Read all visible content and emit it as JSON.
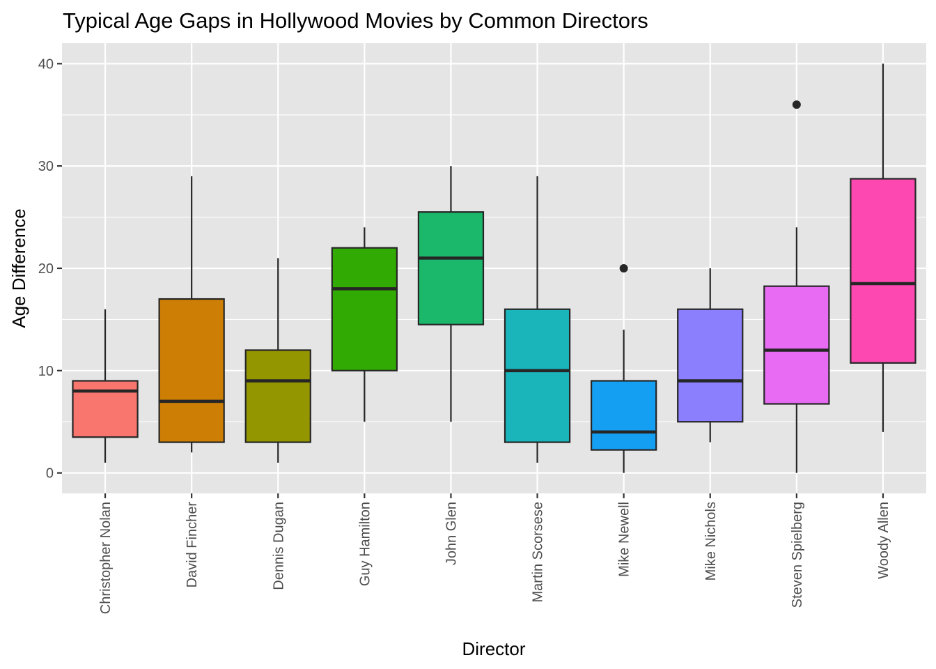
{
  "chart_data": {
    "type": "boxplot",
    "title": "Typical Age Gaps in Hollywood Movies by Common Directors",
    "xlabel": "Director",
    "ylabel": "Age Difference",
    "ylim": [
      -2,
      42
    ],
    "yticks": [
      0,
      10,
      20,
      30,
      40
    ],
    "grid": true,
    "legend": "none",
    "colors": {
      "panel": "#e5e5e5",
      "grid": "#ffffff",
      "box_line": "#262626",
      "tick_text": "#4d4d4d"
    },
    "categories": [
      "Christopher Nolan",
      "David Fincher",
      "Dennis Dugan",
      "Guy Hamilton",
      "John Glen",
      "Martin Scorsese",
      "Mike Newell",
      "Mike Nichols",
      "Steven Spielberg",
      "Woody Allen"
    ],
    "boxes": [
      {
        "label": "Christopher Nolan",
        "fill": "#f8766d",
        "lower_whisker": 1,
        "q1": 3.5,
        "median": 8,
        "q3": 9,
        "upper_whisker": 16,
        "outliers": []
      },
      {
        "label": "David Fincher",
        "fill": "#cd7e05",
        "lower_whisker": 2,
        "q1": 3,
        "median": 7,
        "q3": 17,
        "upper_whisker": 29,
        "outliers": []
      },
      {
        "label": "Dennis Dugan",
        "fill": "#949600",
        "lower_whisker": 1,
        "q1": 3,
        "median": 9,
        "q3": 12,
        "upper_whisker": 21,
        "outliers": []
      },
      {
        "label": "Guy Hamilton",
        "fill": "#31ab03",
        "lower_whisker": 5,
        "q1": 10,
        "median": 18,
        "q3": 22,
        "upper_whisker": 24,
        "outliers": []
      },
      {
        "label": "John Glen",
        "fill": "#1bb76b",
        "lower_whisker": 5,
        "q1": 14.5,
        "median": 21,
        "q3": 25.5,
        "upper_whisker": 30,
        "outliers": []
      },
      {
        "label": "Martin Scorsese",
        "fill": "#19b5bb",
        "lower_whisker": 1,
        "q1": 3,
        "median": 10,
        "q3": 16,
        "upper_whisker": 29,
        "outliers": []
      },
      {
        "label": "Mike Newell",
        "fill": "#159ff2",
        "lower_whisker": 0,
        "q1": 2.25,
        "median": 4,
        "q3": 9,
        "upper_whisker": 14,
        "outliers": [
          20
        ]
      },
      {
        "label": "Mike Nichols",
        "fill": "#8b7ffe",
        "lower_whisker": 3,
        "q1": 5,
        "median": 9,
        "q3": 16,
        "upper_whisker": 20,
        "outliers": []
      },
      {
        "label": "Steven Spielberg",
        "fill": "#e76cf3",
        "lower_whisker": 0,
        "q1": 6.75,
        "median": 12,
        "q3": 18.25,
        "upper_whisker": 24,
        "outliers": [
          36
        ]
      },
      {
        "label": "Woody Allen",
        "fill": "#fd48b2",
        "lower_whisker": 4,
        "q1": 10.75,
        "median": 18.5,
        "q3": 28.75,
        "upper_whisker": 40,
        "outliers": []
      }
    ]
  }
}
